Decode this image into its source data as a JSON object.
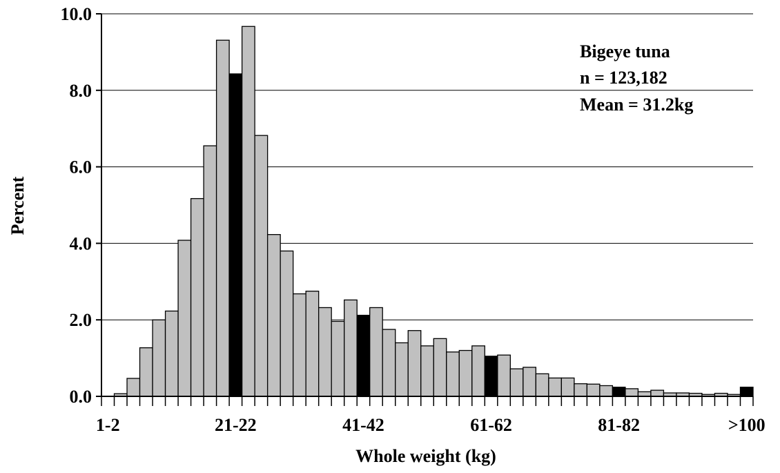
{
  "chart_data": {
    "type": "bar",
    "xlabel": "Whole weight (kg)",
    "ylabel": "Percent",
    "ylim": [
      0,
      10
    ],
    "yticks": [
      "0.0",
      "2.0",
      "4.0",
      "6.0",
      "8.0",
      "10.0"
    ],
    "ytick_values": [
      0,
      2,
      4,
      6,
      8,
      10
    ],
    "xtick_labels": [
      {
        "index": 0,
        "label": "1-2"
      },
      {
        "index": 10,
        "label": "21-22"
      },
      {
        "index": 20,
        "label": "41-42"
      },
      {
        "index": 30,
        "label": "61-62"
      },
      {
        "index": 40,
        "label": "81-82"
      },
      {
        "index": 50,
        "label": ">100"
      }
    ],
    "values": [
      0.0,
      0.07,
      0.47,
      1.27,
      2.0,
      2.23,
      4.08,
      5.17,
      6.55,
      9.31,
      8.43,
      9.67,
      6.82,
      4.23,
      3.8,
      2.68,
      2.75,
      2.32,
      1.96,
      2.52,
      2.12,
      2.32,
      1.75,
      1.4,
      1.72,
      1.32,
      1.51,
      1.16,
      1.2,
      1.32,
      1.05,
      1.08,
      0.72,
      0.76,
      0.59,
      0.48,
      0.48,
      0.33,
      0.32,
      0.28,
      0.24,
      0.2,
      0.12,
      0.16,
      0.09,
      0.09,
      0.08,
      0.05,
      0.08,
      0.05,
      0.24
    ],
    "highlighted_indices": [
      10,
      20,
      30,
      40,
      50
    ],
    "colors": {
      "bar_fill": "#c0c0c0",
      "highlight_fill": "#000000",
      "bar_stroke": "#000000",
      "grid": "#000000"
    },
    "grid": true,
    "annotations": [
      "Bigeye tuna",
      "n = 123,182",
      "Mean = 31.2kg"
    ],
    "annotation_position": "top-right"
  }
}
